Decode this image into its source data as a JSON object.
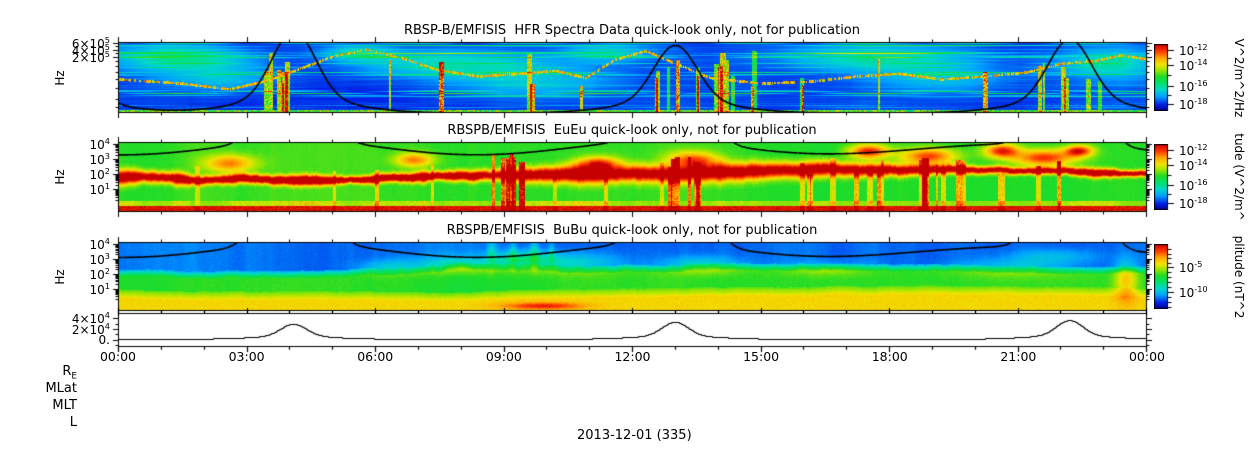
{
  "figure": {
    "date_label": "2013-12-01 (335)",
    "row_labels": [
      "R_E",
      "MLat",
      "MLT",
      "L"
    ]
  },
  "x_axis": {
    "tick_labels": [
      "00:00",
      "03:00",
      "06:00",
      "09:00",
      "12:00",
      "15:00",
      "18:00",
      "21:00",
      "00:00"
    ],
    "hours_range": [
      0,
      24
    ],
    "major_every_hours": 3,
    "minor_every_hours": 1
  },
  "events": {
    "magnetic_peak_hours": [
      4.1,
      13.0,
      22.2
    ]
  },
  "chart_data": [
    {
      "type": "heatmap",
      "id": "hfr",
      "title": "RBSP-B/EMFISIS  HFR Spectra Data quick-look only, not for publication",
      "ylabel": "Hz",
      "y_scale": "log",
      "y_ticks": [
        {
          "label": "6×10^5",
          "f": 0.02
        },
        {
          "label": "4×10^5",
          "f": 0.11
        },
        {
          "label": "2×10^5",
          "f": 0.21
        }
      ],
      "y_minor_f": [
        0.06,
        0.16,
        0.27,
        0.34,
        0.42,
        0.52,
        0.65,
        0.8,
        0.92
      ],
      "colorbar": {
        "unit": "V^2/m^2/Hz",
        "ticks": [
          {
            "label": "10^-12",
            "f": 0.09
          },
          {
            "label": "10^-14",
            "f": 0.32
          },
          {
            "label": "10^-16",
            "f": 0.62
          },
          {
            "label": "10^-18",
            "f": 0.9
          }
        ],
        "minor_f": [
          0.205,
          0.47,
          0.76
        ],
        "value_range_log10": [
          -18,
          -12
        ]
      },
      "features": {
        "background": "dark blue with horizontal cyan banding and an upper-hybrid trace",
        "vertical_burst_hours": [
          [
            3.55,
            4.5
          ],
          [
            12.4,
            16.4
          ],
          [
            21.3,
            23.2
          ]
        ],
        "black_spike_hours": [
          4.1,
          13.0,
          22.2
        ]
      }
    },
    {
      "type": "heatmap",
      "id": "eueu",
      "title": "RBSPB/EMFISIS  EuEu quick-look only, not for publication",
      "ylabel": "Hz",
      "y_scale": "log",
      "y_ticks": [
        {
          "label": "10^4",
          "f": 0.03
        },
        {
          "label": "10^3",
          "f": 0.245
        },
        {
          "label": "10^2",
          "f": 0.46
        },
        {
          "label": "10^1",
          "f": 0.675
        }
      ],
      "decade_span_f": 0.215,
      "colorbar": {
        "unit": "tude (V^2/m^",
        "ticks": [
          {
            "label": "10^-12",
            "f": 0.09
          },
          {
            "label": "10^-14",
            "f": 0.32
          },
          {
            "label": "10^-16",
            "f": 0.62
          },
          {
            "label": "10^-18",
            "f": 0.9
          }
        ],
        "minor_f": [
          0.205,
          0.47,
          0.76
        ],
        "value_range_log10": [
          -18,
          -12
        ]
      },
      "features": {
        "background": "green with red-orange mid band, solid red bottom band",
        "midband_f": [
          0.3,
          0.62
        ],
        "bottom_red_band_f": [
          0.9,
          1.0
        ],
        "vertical_burst_hours": [
          [
            8.2,
            9.7
          ],
          [
            12.4,
            14.2
          ],
          [
            15.8,
            22.6
          ]
        ],
        "black_fce_curve_near_top": true
      }
    },
    {
      "type": "heatmap",
      "id": "bubu",
      "title": "RBSPB/EMFISIS  BuBu quick-look only, not for publication",
      "ylabel": "Hz",
      "y_scale": "log",
      "y_ticks": [
        {
          "label": "10^4",
          "f": 0.03
        },
        {
          "label": "10^3",
          "f": 0.245
        },
        {
          "label": "10^2",
          "f": 0.46
        },
        {
          "label": "10^1",
          "f": 0.675
        }
      ],
      "decade_span_f": 0.215,
      "colorbar": {
        "unit": "plitude (nT^2",
        "ticks": [
          {
            "label": "10^-5",
            "f": 0.35
          },
          {
            "label": "10^-10",
            "f": 0.74
          }
        ],
        "minor_f": [
          0.074,
          0.148,
          0.222,
          0.296,
          0.428,
          0.506,
          0.584,
          0.662,
          0.818,
          0.896,
          0.962
        ],
        "value_range_log10": [
          -12,
          -3
        ]
      },
      "features": {
        "background": "blue top, green middle, yellow bottom band",
        "hot_spot_hour": 9.9,
        "black_fce_curve_near_top": true
      }
    },
    {
      "type": "line",
      "id": "b-magnitude",
      "y_ticks": [
        {
          "label": "4×10^4",
          "f": 0.15
        },
        {
          "label": "2×10^4",
          "f": 0.47
        },
        {
          "label": "0.",
          "f": 0.79
        }
      ],
      "y_minor_f": [
        0.31,
        0.63,
        0.95
      ],
      "baseline_f": 0.76,
      "peaks": [
        {
          "hour": 4.1,
          "top_f": 0.32
        },
        {
          "hour": 13.0,
          "top_f": 0.26
        },
        {
          "hour": 22.2,
          "top_f": 0.21
        }
      ]
    }
  ]
}
